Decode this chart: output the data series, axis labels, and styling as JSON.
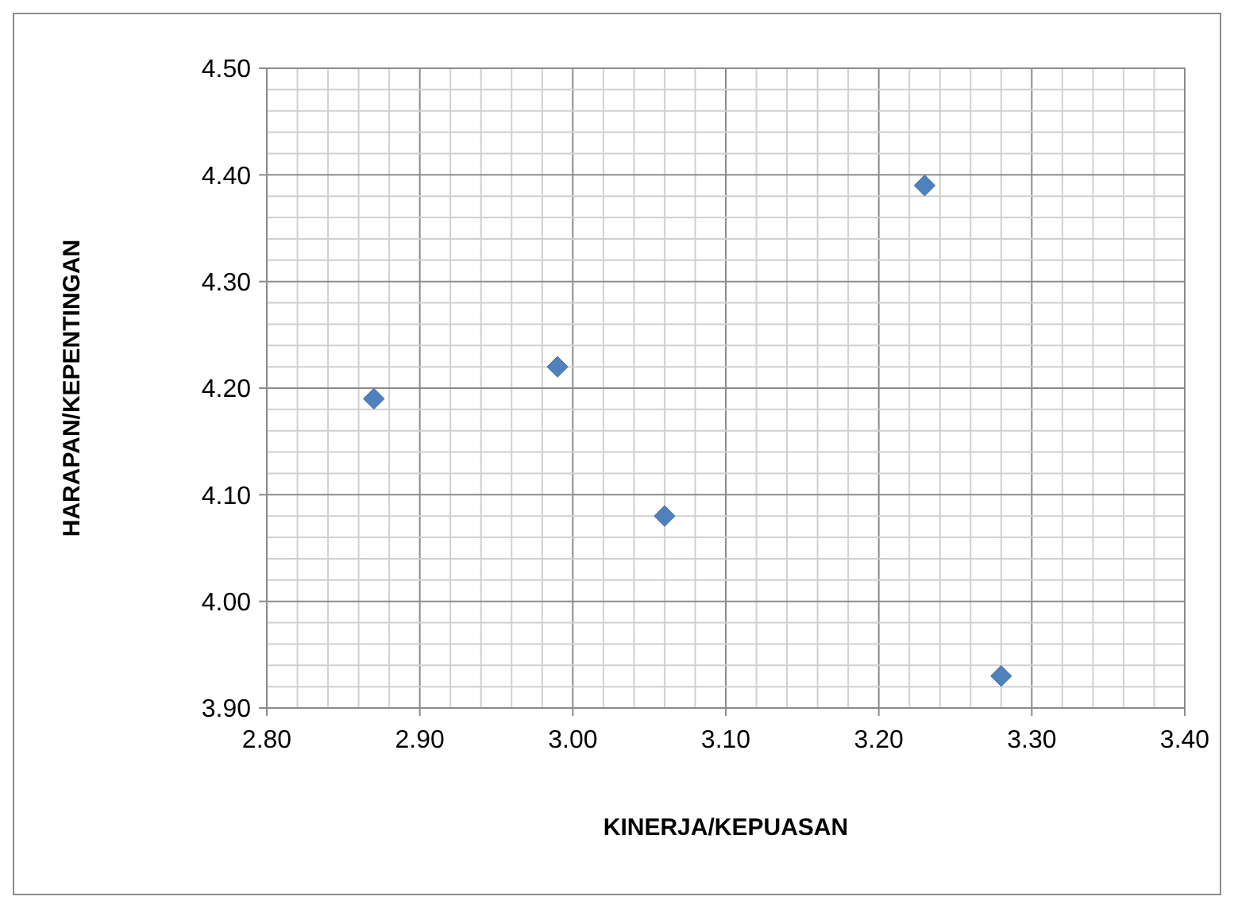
{
  "chart_data": {
    "type": "scatter",
    "xlabel": "KINERJA/KEPUASAN",
    "ylabel": "HARAPAN/KEPENTINGAN",
    "x": [
      2.87,
      2.99,
      3.06,
      3.23,
      3.28
    ],
    "series": [
      {
        "color": "#4f81bd",
        "values": [
          4.19,
          4.22,
          4.08,
          4.39,
          3.93
        ]
      }
    ],
    "xlim": [
      2.8,
      3.4
    ],
    "ylim": [
      3.9,
      4.5
    ],
    "xticks": [
      {
        "value": 2.8,
        "label": "2.80"
      },
      {
        "value": 2.82,
        "label": null
      },
      {
        "value": 2.84,
        "label": null
      },
      {
        "value": 2.86,
        "label": null
      },
      {
        "value": 2.88,
        "label": null
      },
      {
        "value": 2.9,
        "label": "2.90"
      },
      {
        "value": 2.92,
        "label": null
      },
      {
        "value": 2.94,
        "label": null
      },
      {
        "value": 2.96,
        "label": null
      },
      {
        "value": 2.98,
        "label": null
      },
      {
        "value": 3.0,
        "label": "3.00"
      },
      {
        "value": 3.02,
        "label": null
      },
      {
        "value": 3.04,
        "label": null
      },
      {
        "value": 3.06,
        "label": null
      },
      {
        "value": 3.08,
        "label": null
      },
      {
        "value": 3.1,
        "label": "3.10"
      },
      {
        "value": 3.12,
        "label": null
      },
      {
        "value": 3.14,
        "label": null
      },
      {
        "value": 3.16,
        "label": null
      },
      {
        "value": 3.18,
        "label": null
      },
      {
        "value": 3.2,
        "label": "3.20"
      },
      {
        "value": 3.22,
        "label": null
      },
      {
        "value": 3.24,
        "label": null
      },
      {
        "value": 3.26,
        "label": null
      },
      {
        "value": 3.28,
        "label": null
      },
      {
        "value": 3.3,
        "label": "3.30"
      },
      {
        "value": 3.32,
        "label": null
      },
      {
        "value": 3.34,
        "label": null
      },
      {
        "value": 3.36,
        "label": null
      },
      {
        "value": 3.38,
        "label": null
      },
      {
        "value": 3.4,
        "label": "3.40"
      }
    ],
    "yticks": [
      {
        "value": 3.9,
        "label": "3.90"
      },
      {
        "value": 3.92,
        "label": null
      },
      {
        "value": 3.94,
        "label": null
      },
      {
        "value": 3.96,
        "label": null
      },
      {
        "value": 3.98,
        "label": null
      },
      {
        "value": 4.0,
        "label": "4.00"
      },
      {
        "value": 4.02,
        "label": null
      },
      {
        "value": 4.04,
        "label": null
      },
      {
        "value": 4.06,
        "label": null
      },
      {
        "value": 4.08,
        "label": null
      },
      {
        "value": 4.1,
        "label": "4.10"
      },
      {
        "value": 4.12,
        "label": null
      },
      {
        "value": 4.14,
        "label": null
      },
      {
        "value": 4.16,
        "label": null
      },
      {
        "value": 4.18,
        "label": null
      },
      {
        "value": 4.2,
        "label": "4.20"
      },
      {
        "value": 4.22,
        "label": null
      },
      {
        "value": 4.24,
        "label": null
      },
      {
        "value": 4.26,
        "label": null
      },
      {
        "value": 4.28,
        "label": null
      },
      {
        "value": 4.3,
        "label": "4.30"
      },
      {
        "value": 4.32,
        "label": null
      },
      {
        "value": 4.34,
        "label": null
      },
      {
        "value": 4.36,
        "label": null
      },
      {
        "value": 4.38,
        "label": null
      },
      {
        "value": 4.4,
        "label": "4.40"
      },
      {
        "value": 4.42,
        "label": null
      },
      {
        "value": 4.44,
        "label": null
      },
      {
        "value": 4.46,
        "label": null
      },
      {
        "value": 4.48,
        "label": null
      },
      {
        "value": 4.5,
        "label": "4.50"
      }
    ],
    "grid": true,
    "marker": "diamond"
  }
}
